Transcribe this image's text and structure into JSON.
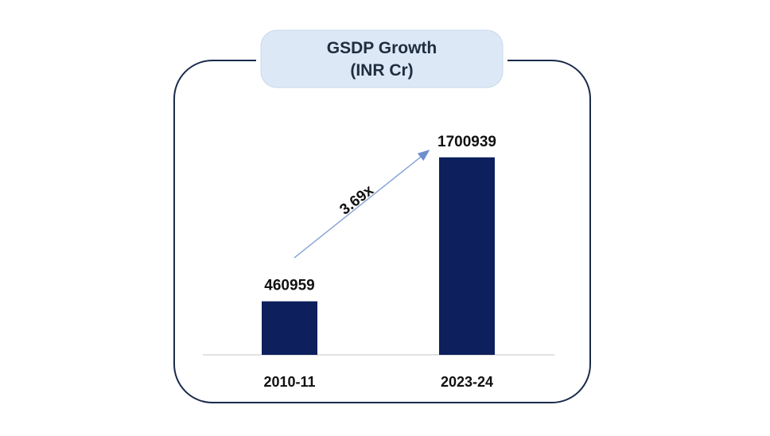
{
  "chart_data": {
    "type": "bar",
    "title_line1": "GSDP Growth",
    "title_line2": "(INR Cr)",
    "categories": [
      "2010-11",
      "2023-24"
    ],
    "values": [
      460959,
      1700939
    ],
    "value_labels": [
      "460959",
      "1700939"
    ],
    "ylim": [
      0,
      1850000
    ],
    "grid": false,
    "annotation": {
      "text": "3.69x",
      "from_category": "2010-11",
      "to_category": "2023-24"
    },
    "colors": {
      "bar": "#0d1f5c",
      "frame": "#1a2a4a",
      "title_badge": "#dce8f5",
      "arrow": "#8aa6d6",
      "baseline": "#d9d9d9"
    }
  }
}
